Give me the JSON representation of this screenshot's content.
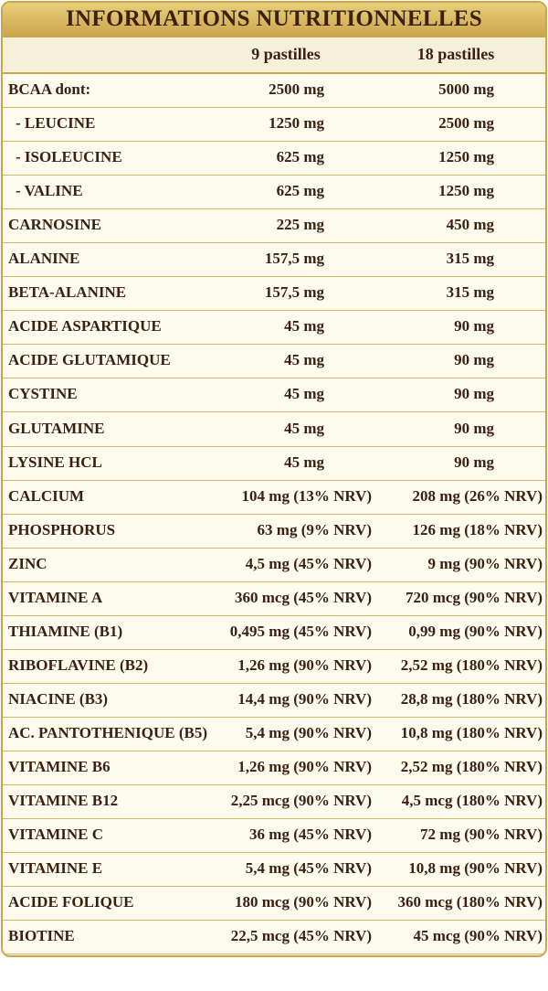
{
  "header": {
    "title": "INFORMATIONS NUTRITIONNELLES"
  },
  "table": {
    "columns": [
      "9 pastilles",
      "18 pastilles"
    ],
    "rows": [
      [
        "BCAA dont:",
        "2500 mg",
        "5000 mg"
      ],
      [
        "- LEUCINE",
        "1250 mg",
        "2500 mg"
      ],
      [
        "- ISOLEUCINE",
        "625 mg",
        "1250 mg"
      ],
      [
        "- VALINE",
        "625 mg",
        "1250 mg"
      ],
      [
        "CARNOSINE",
        "225 mg",
        "450 mg"
      ],
      [
        "ALANINE",
        "157,5 mg",
        "315 mg"
      ],
      [
        "BETA-ALANINE",
        "157,5 mg",
        "315 mg"
      ],
      [
        "ACIDE ASPARTIQUE",
        "45 mg",
        "90 mg"
      ],
      [
        "ACIDE GLUTAMIQUE",
        "45 mg",
        "90 mg"
      ],
      [
        "CYSTINE",
        "45 mg",
        "90 mg"
      ],
      [
        "GLUTAMINE",
        "45 mg",
        "90 mg"
      ],
      [
        "LYSINE HCL",
        "45 mg",
        "90 mg"
      ],
      [
        "CALCIUM",
        "104 mg (13% NRV)",
        "208 mg (26% NRV)"
      ],
      [
        "PHOSPHORUS",
        "63 mg (9% NRV)",
        "126 mg (18% NRV)"
      ],
      [
        "ZINC",
        "4,5 mg (45% NRV)",
        "9 mg (90% NRV)"
      ],
      [
        "VITAMINE A",
        "360 mcg (45% NRV)",
        "720 mcg (90% NRV)"
      ],
      [
        "THIAMINE (B1)",
        "0,495 mg (45% NRV)",
        "0,99 mg (90% NRV)"
      ],
      [
        "RIBOFLAVINE (B2)",
        "1,26 mg (90% NRV)",
        "2,52 mg (180% NRV)"
      ],
      [
        "NIACINE (B3)",
        "14,4 mg (90% NRV)",
        "28,8 mg (180% NRV)"
      ],
      [
        "AC. PANTOTHENIQUE (B5)",
        "5,4 mg (90% NRV)",
        "10,8 mg (180% NRV)"
      ],
      [
        "VITAMINE B6",
        "1,26 mg (90% NRV)",
        "2,52 mg (180% NRV)"
      ],
      [
        "VITAMINE B12",
        "2,25 mcg (90% NRV)",
        "4,5 mcg (180% NRV)"
      ],
      [
        "VITAMINE C",
        "36 mg (45% NRV)",
        "72 mg (90% NRV)"
      ],
      [
        "VITAMINE E",
        "5,4 mg (45% NRV)",
        "10,8 mg (90% NRV)"
      ],
      [
        "ACIDE FOLIQUE",
        "180 mcg (90% NRV)",
        "360 mcg (180% NRV)"
      ],
      [
        "BIOTINE",
        "22,5 mcg (45% NRV)",
        "45 mcg (90% NRV)"
      ]
    ]
  }
}
